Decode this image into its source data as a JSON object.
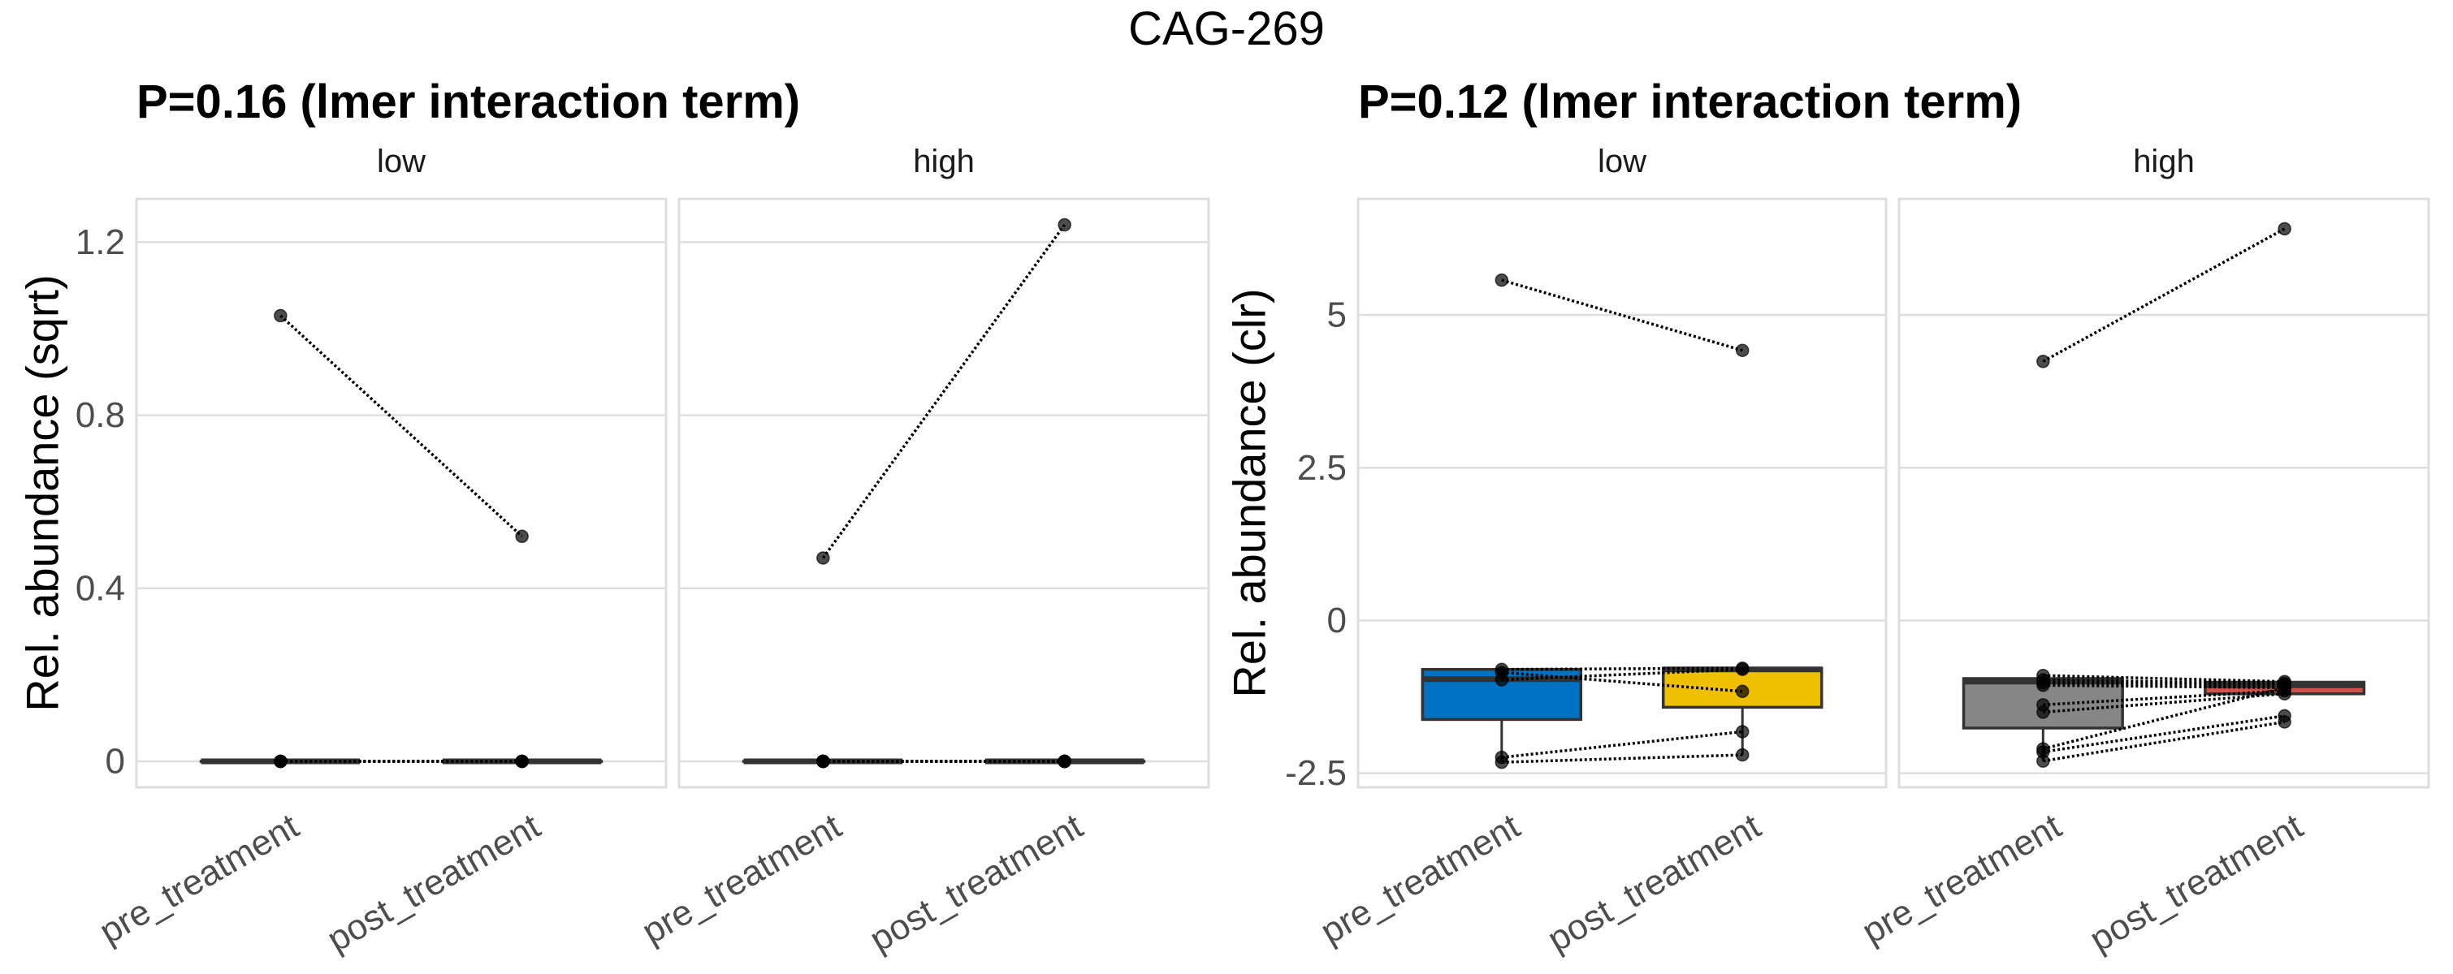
{
  "title": "CAG-269",
  "colors": {
    "pre_low": "#0072C3",
    "post_low": "#EFC000",
    "pre_high": "#868686",
    "post_high": "#CD534C",
    "grid": "#DEDEDE",
    "point": "#000000"
  },
  "chart_data": [
    {
      "type": "box",
      "title": "P=0.16 (lmer interaction term)",
      "ylabel": "Rel. abundance (sqrt)",
      "ylim": [
        -0.06,
        1.3
      ],
      "yticks": [
        0,
        0.4,
        0.8,
        1.2
      ],
      "ytick_labels": [
        "0",
        "0.4",
        "0.8",
        "1.2"
      ],
      "categories": [
        "pre_treatment",
        "post_treatment"
      ],
      "facets": [
        {
          "label": "low",
          "boxes": [
            {
              "category": "pre_treatment",
              "q1": 0,
              "median": 0,
              "q3": 0,
              "whisker_low": 0,
              "whisker_high": 0,
              "points": [
                1.03,
                0,
                0,
                0,
                0
              ]
            },
            {
              "category": "post_treatment",
              "q1": 0,
              "median": 0,
              "q3": 0,
              "whisker_low": 0,
              "whisker_high": 0,
              "points": [
                0.52,
                0,
                0,
                0,
                0
              ]
            }
          ],
          "pairs": [
            [
              1.03,
              0.52
            ],
            [
              0,
              0
            ],
            [
              0,
              0
            ],
            [
              0,
              0
            ],
            [
              0,
              0
            ]
          ]
        },
        {
          "label": "high",
          "boxes": [
            {
              "category": "pre_treatment",
              "q1": 0,
              "median": 0,
              "q3": 0,
              "whisker_low": 0,
              "whisker_high": 0,
              "points": [
                0.47,
                0,
                0,
                0,
                0,
                0,
                0,
                0,
                0
              ]
            },
            {
              "category": "post_treatment",
              "q1": 0,
              "median": 0,
              "q3": 0,
              "whisker_low": 0,
              "whisker_high": 0,
              "points": [
                1.24,
                0,
                0,
                0,
                0,
                0,
                0,
                0,
                0
              ]
            }
          ],
          "pairs": [
            [
              0.47,
              1.24
            ],
            [
              0,
              0
            ],
            [
              0,
              0
            ],
            [
              0,
              0
            ],
            [
              0,
              0
            ],
            [
              0,
              0
            ],
            [
              0,
              0
            ],
            [
              0,
              0
            ],
            [
              0,
              0
            ]
          ]
        }
      ],
      "colored_boxes": false
    },
    {
      "type": "box",
      "title": "P=0.12 (lmer interaction term)",
      "ylabel": "Rel. abundance (clr)",
      "ylim": [
        -2.73,
        6.9
      ],
      "yticks": [
        -2.5,
        0,
        2.5,
        5
      ],
      "ytick_labels": [
        "-2.5",
        "0",
        "2.5",
        "5"
      ],
      "categories": [
        "pre_treatment",
        "post_treatment"
      ],
      "facets": [
        {
          "label": "low",
          "boxes": [
            {
              "category": "pre_treatment",
              "fill_key": "pre_low",
              "q1": -1.62,
              "median": -0.96,
              "q3": -0.8,
              "whisker_low": -2.3,
              "whisker_high": -0.8,
              "points": [
                5.57,
                -0.8,
                -0.85,
                -0.97,
                -2.24,
                -2.32
              ]
            },
            {
              "category": "post_treatment",
              "fill_key": "post_low",
              "q1": -1.42,
              "median": -0.8,
              "q3": -0.78,
              "whisker_low": -2.2,
              "whisker_high": -0.78,
              "points": [
                4.42,
                -0.78,
                -0.8,
                -1.16,
                -1.82,
                -2.2
              ]
            }
          ],
          "pairs": [
            [
              5.57,
              4.42
            ],
            [
              -0.8,
              -0.78
            ],
            [
              -0.85,
              -1.16
            ],
            [
              -0.97,
              -0.8
            ],
            [
              -2.24,
              -1.82
            ],
            [
              -2.32,
              -2.2
            ]
          ]
        },
        {
          "label": "high",
          "boxes": [
            {
              "category": "pre_treatment",
              "fill_key": "pre_high",
              "q1": -1.76,
              "median": -1.0,
              "q3": -0.95,
              "whisker_low": -2.3,
              "whisker_high": -0.9,
              "points": [
                4.24,
                -0.9,
                -0.97,
                -1.02,
                -1.06,
                -1.38,
                -1.5,
                -2.1,
                -2.15,
                -2.3
              ]
            },
            {
              "category": "post_treatment",
              "fill_key": "post_high",
              "q1": -1.2,
              "median": -1.06,
              "q3": -1.01,
              "whisker_low": -1.2,
              "whisker_high": -1.0,
              "points": [
                6.41,
                -1.0,
                -1.03,
                -1.05,
                -1.1,
                -1.15,
                -1.2,
                -1.56,
                -1.66,
                -1.1
              ]
            }
          ],
          "pairs": [
            [
              4.24,
              6.41
            ],
            [
              -0.9,
              -1.0
            ],
            [
              -0.97,
              -1.03
            ],
            [
              -1.02,
              -1.05
            ],
            [
              -1.06,
              -1.1
            ],
            [
              -1.38,
              -1.15
            ],
            [
              -1.5,
              -1.2
            ],
            [
              -2.1,
              -1.1
            ],
            [
              -2.15,
              -1.56
            ],
            [
              -2.3,
              -1.66
            ]
          ]
        }
      ],
      "colored_boxes": true
    }
  ]
}
